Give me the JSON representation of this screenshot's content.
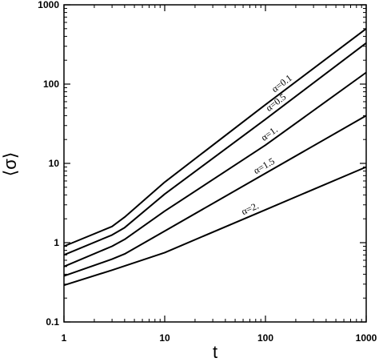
{
  "chart_data": {
    "type": "line",
    "xscale": "log",
    "yscale": "log",
    "xlim": [
      1,
      1000
    ],
    "ylim": [
      0.1,
      1000
    ],
    "xlabel": "t",
    "ylabel": "⟨σ⟩",
    "xticks": [
      {
        "value": 1,
        "label": "1"
      },
      {
        "value": 10,
        "label": "10"
      },
      {
        "value": 100,
        "label": "100"
      },
      {
        "value": 1000,
        "label": "1000"
      }
    ],
    "yticks": [
      {
        "value": 0.1,
        "label": "0.1"
      },
      {
        "value": 1,
        "label": "1"
      },
      {
        "value": 10,
        "label": "10"
      },
      {
        "value": 100,
        "label": "100"
      },
      {
        "value": 1000,
        "label": "1000"
      }
    ],
    "grid": false,
    "legend": "none",
    "series": [
      {
        "name": "α=0.1",
        "x": [
          1,
          3,
          4,
          10,
          100,
          1000
        ],
        "y": [
          0.9,
          1.6,
          2.1,
          5.8,
          55,
          500
        ]
      },
      {
        "name": "α=0.5",
        "x": [
          1,
          3,
          4,
          10,
          100,
          1000
        ],
        "y": [
          0.7,
          1.25,
          1.55,
          4.1,
          36,
          330
        ]
      },
      {
        "name": "α=1.",
        "x": [
          1,
          3,
          4,
          10,
          100,
          1000
        ],
        "y": [
          0.5,
          0.9,
          1.1,
          2.5,
          17,
          140
        ]
      },
      {
        "name": "α=1.5",
        "x": [
          1,
          3,
          4,
          10,
          100,
          1000
        ],
        "y": [
          0.38,
          0.62,
          0.72,
          1.4,
          7.5,
          40
        ]
      },
      {
        "name": "α=2.",
        "x": [
          1,
          3,
          10,
          100,
          1000
        ],
        "y": [
          0.29,
          0.45,
          0.75,
          2.6,
          9
        ]
      }
    ]
  }
}
